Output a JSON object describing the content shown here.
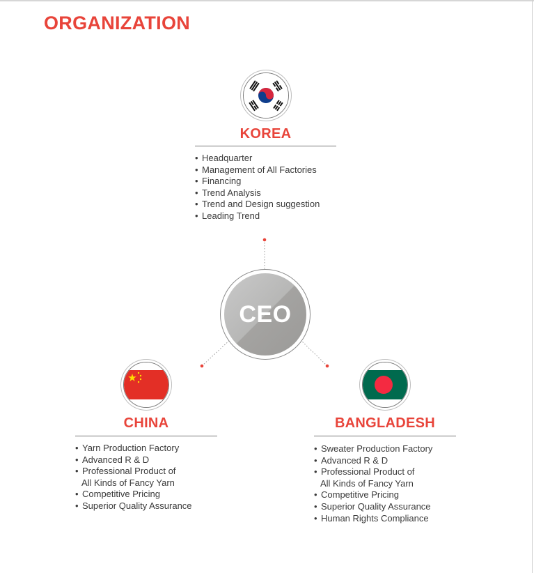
{
  "page": {
    "title": "ORGANIZATION"
  },
  "ceo": {
    "label": "CEO"
  },
  "korea": {
    "title": "KOREA",
    "items": [
      "Headquarter",
      "Management of All Factories",
      "Financing",
      "Trend Analysis",
      "Trend and Design suggestion",
      "Leading Trend"
    ]
  },
  "china": {
    "title": "CHINA",
    "items": [
      "Yarn Production Factory",
      "Advanced R & D",
      "Professional Product of",
      "All Kinds of Fancy Yarn",
      "Competitive Pricing",
      "Superior Quality Assurance"
    ]
  },
  "bangladesh": {
    "title": "BANGLADESH",
    "items": [
      "Sweater Production Factory",
      "Advanced R & D",
      "Professional Product of",
      "All Kinds of Fancy Yarn",
      "Competitive Pricing",
      "Superior Quality Assurance",
      "Human Rights Compliance"
    ]
  },
  "colors": {
    "accent": "#e8443a",
    "text": "#3a3a3a",
    "ceo_circle": "#b0afad"
  },
  "icons": [
    "korea-flag-icon",
    "china-flag-icon",
    "bangladesh-flag-icon"
  ]
}
